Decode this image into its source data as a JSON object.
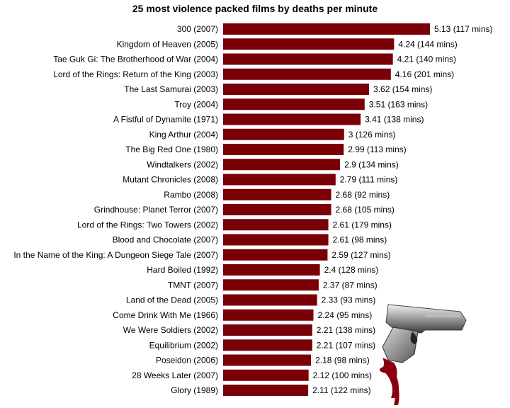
{
  "chart_data": {
    "type": "bar",
    "orientation": "horizontal",
    "title": "25 most violence packed films by deaths per minute",
    "xlabel": "",
    "ylabel": "",
    "grid": false,
    "bar_color": "#7a0008",
    "categories": [
      "300 (2007)",
      "Kingdom of Heaven (2005)",
      "Tae Guk Gi: The Brotherhood of War (2004)",
      "Lord of the Rings: Return of the King (2003)",
      "The Last Samurai (2003)",
      "Troy (2004)",
      "A Fistful of Dynamite (1971)",
      "King Arthur (2004)",
      "The Big Red One (1980)",
      "Windtalkers (2002)",
      "Mutant Chronicles (2008)",
      "Rambo (2008)",
      "Grindhouse: Planet Terror (2007)",
      "Lord of the Rings: Two Towers (2002)",
      "Blood and Chocolate (2007)",
      "In the Name of the King: A Dungeon Siege Tale (2007)",
      "Hard Boiled (1992)",
      "TMNT (2007)",
      "Land of the Dead (2005)",
      "Come Drink With Me (1966)",
      "We Were Soldiers (2002)",
      "Equilibrium (2002)",
      "Poseidon (2006)",
      "28 Weeks Later (2007)",
      "Glory (1989)"
    ],
    "values": [
      5.13,
      4.24,
      4.21,
      4.16,
      3.62,
      3.51,
      3.41,
      3,
      2.99,
      2.9,
      2.79,
      2.68,
      2.68,
      2.61,
      2.61,
      2.59,
      2.4,
      2.37,
      2.33,
      2.24,
      2.21,
      2.21,
      2.18,
      2.12,
      2.11
    ],
    "data_labels": [
      "5.13 (117 mins)",
      "4.24 (144 mins)",
      "4.21 (140 mins)",
      "4.16 (201 mins)",
      "3.62 (154 mins)",
      "3.51 (163 mins)",
      "3.41 (138 mins)",
      "3 (126 mins)",
      "2.99 (113 mins)",
      "2.9 (134 mins)",
      "2.79 (111 mins)",
      "2.68 (92 mins)",
      "2.68 (105 mins)",
      "2.61 (179 mins)",
      "2.61 (98 mins)",
      "2.59 (127 mins)",
      "2.4 (128 mins)",
      "2.37 (87 mins)",
      "2.33 (93 mins)",
      "2.24 (95 mins)",
      "2.21 (138 mins)",
      "2.21 (107 mins)",
      "2.18 (98 mins)",
      "2.12 (100 mins)",
      "2.11 (122 mins)"
    ],
    "xlim": [
      0,
      5.13
    ]
  },
  "decoration": {
    "image": "pistol-with-blood",
    "colors": {
      "blood": "#8a0010",
      "metal": "#9a9a9a"
    }
  }
}
